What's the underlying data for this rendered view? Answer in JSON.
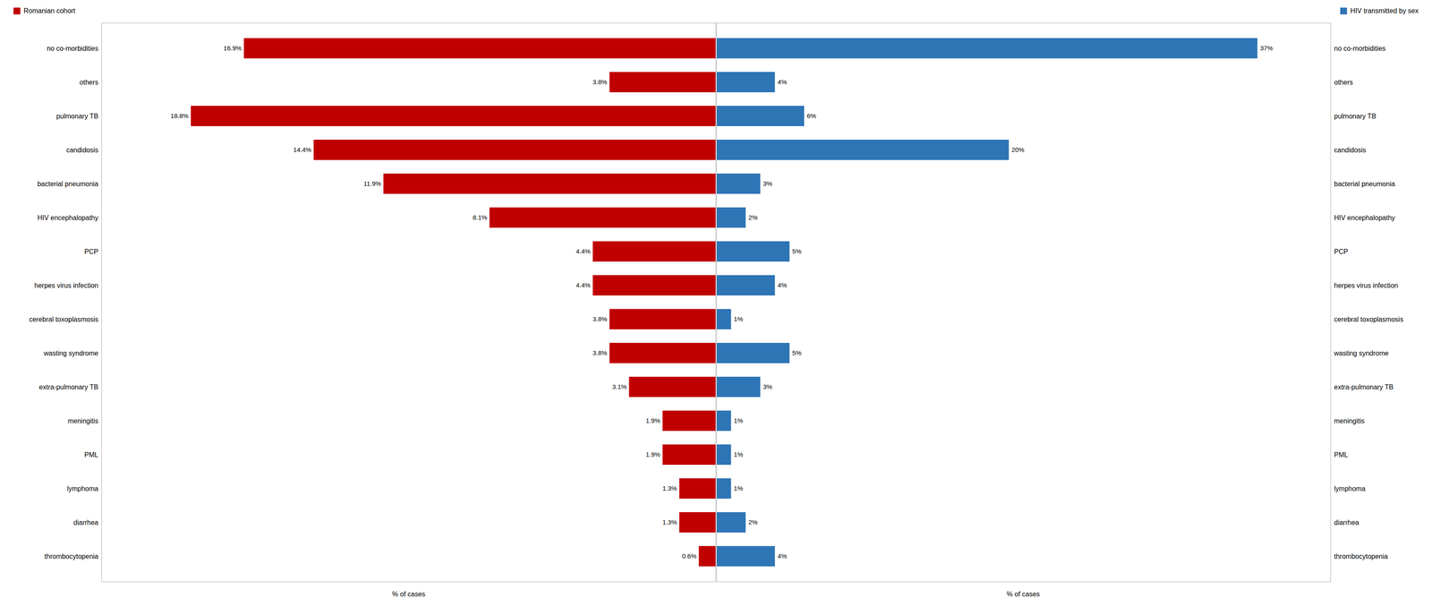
{
  "chart_data": [
    {
      "type": "bar",
      "orientation": "horizontal",
      "categories": [
        "no co-morbidities",
        "others",
        "pulmonary TB",
        "candidosis",
        "bacterial pneumonia",
        "HIV encephalopathy",
        "PCP",
        "herpes virus infection",
        "cerebral toxoplasmosis",
        "wasting syndrome",
        "extra-pulmonary TB",
        "meningitis",
        "PML",
        "lymphoma",
        "diarrhea",
        "thrombocytopenia"
      ],
      "series": [
        {
          "name": "Romanian cohort",
          "color": "#C00000",
          "values": [
            16.9,
            3.8,
            18.8,
            14.4,
            11.9,
            8.1,
            4.4,
            4.4,
            3.8,
            3.8,
            3.1,
            1.9,
            1.9,
            1.3,
            1.3,
            0.6
          ],
          "value_labels": [
            "16.9%",
            "3.8%",
            "18.8%",
            "14.4%",
            "11.9%",
            "8.1%",
            "4.4%",
            "4.4%",
            "3.8%",
            "3.8%",
            "3.1%",
            "1.9%",
            "1.9%",
            "1.3%",
            "1.3%",
            "0.6%"
          ]
        }
      ],
      "xlabel": "% of cases",
      "xlim": [
        22,
        0
      ],
      "xticks": [],
      "data_labels": true,
      "tick_labels": "y",
      "grid": false,
      "legend": "upper left"
    },
    {
      "type": "bar",
      "orientation": "horizontal",
      "categories": [
        "no co-morbidities",
        "others",
        "pulmonary TB",
        "candidosis",
        "bacterial pneumonia",
        "HIV encephalopathy",
        "PCP",
        "herpes virus infection",
        "cerebral toxoplasmosis",
        "wasting syndrome",
        "extra-pulmonary TB",
        "meningitis",
        "PML",
        "lymphoma",
        "diarrhea",
        "thrombocytopenia"
      ],
      "series": [
        {
          "name": "HIV transmitted by sex",
          "color": "#2E75B6",
          "values": [
            37,
            4,
            6,
            20,
            3,
            2,
            5,
            4,
            1,
            5,
            3,
            1,
            1,
            1,
            2,
            4
          ],
          "value_labels": [
            "37%",
            "4%",
            "6%",
            "20%",
            "3%",
            "2%",
            "5%",
            "4%",
            "1%",
            "5%",
            "3%",
            "1%",
            "1%",
            "1%",
            "2%",
            "4%"
          ]
        }
      ],
      "xlabel": "% of cases",
      "xlim": [
        0,
        42
      ],
      "xticks": [],
      "data_labels": true,
      "tick_labels": "y",
      "grid": false,
      "legend": "upper right"
    }
  ]
}
